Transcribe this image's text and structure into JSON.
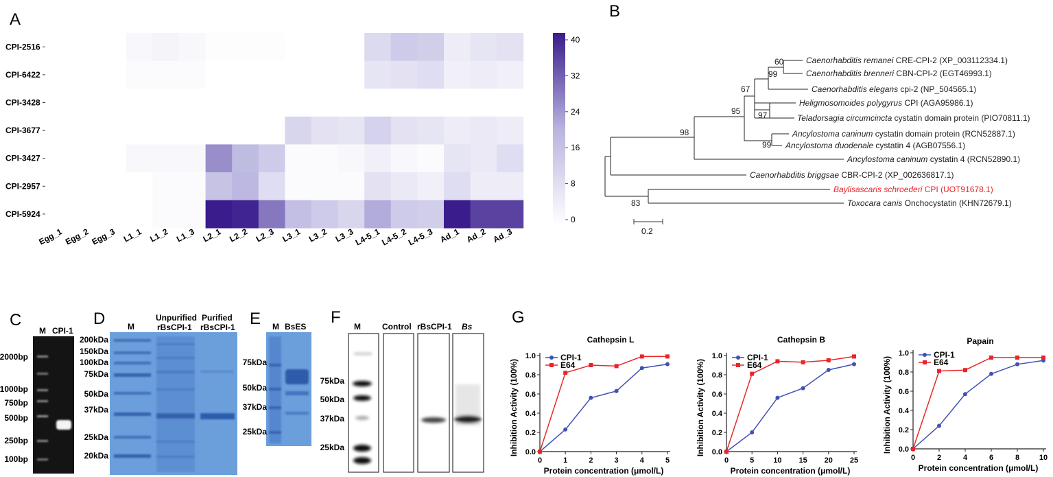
{
  "colors": {
    "heat_low": "#ffffff",
    "heat_high": "#3a1c8c",
    "series_cpi": "#3f51b5",
    "series_e64": "#e8262a",
    "highlight": "#e8262a",
    "gel_dark": "#0d0d0d",
    "gel_blue": "#5f95d6"
  },
  "panels": {
    "A": {
      "letter": "A"
    },
    "B": {
      "letter": "B"
    },
    "C": {
      "letter": "C"
    },
    "D": {
      "letter": "D"
    },
    "E": {
      "letter": "E"
    },
    "F": {
      "letter": "F"
    },
    "G": {
      "letter": "G"
    }
  },
  "heatmap": {
    "rows": [
      "CPI-2516",
      "CPI-6422",
      "CPI-3428",
      "CPI-3677",
      "CPI-3427",
      "CPI-2957",
      "CPI-5924"
    ],
    "cols": [
      "Egg_1",
      "Egg_2",
      "Egg_3",
      "L1_1",
      "L1_2",
      "L1_3",
      "L2_1",
      "L2_2",
      "L2_3",
      "L3_1",
      "L3_2",
      "L3_3",
      "L4-5_1",
      "L4-5_2",
      "L4-5_3",
      "Ad_1",
      "Ad_2",
      "Ad_3"
    ],
    "values": [
      [
        0,
        0,
        0,
        2,
        3,
        2,
        0.5,
        0.5,
        0.5,
        0,
        0,
        0,
        10,
        14,
        13,
        5,
        7,
        8
      ],
      [
        0,
        0,
        0,
        1,
        1,
        1,
        0,
        0,
        0,
        0,
        0,
        0,
        7,
        8,
        9,
        4,
        5,
        4
      ],
      [
        0,
        0,
        0,
        0,
        0,
        0,
        0,
        0,
        0,
        0,
        0,
        0,
        0,
        0,
        0,
        0,
        0,
        0
      ],
      [
        0,
        0,
        0,
        0,
        0,
        0,
        0,
        0,
        0,
        11,
        8,
        7,
        12,
        8,
        7,
        5,
        6,
        5
      ],
      [
        0,
        0,
        0,
        2,
        2,
        2,
        25,
        18,
        14,
        1,
        1,
        2,
        4,
        2,
        1,
        7,
        6,
        9
      ],
      [
        0,
        0,
        0,
        0,
        1,
        1,
        16,
        19,
        9,
        1,
        1,
        1,
        8,
        6,
        4,
        9,
        5,
        5
      ],
      [
        0,
        0,
        0,
        0,
        1,
        1,
        40,
        39,
        28,
        17,
        14,
        11,
        21,
        14,
        13,
        41,
        35,
        35
      ]
    ],
    "scale": {
      "min": 0,
      "max": 40,
      "ticks": [
        "40",
        "32",
        "24",
        "16",
        "8",
        "0"
      ]
    }
  },
  "tree": {
    "taxa": [
      {
        "species": "Caenorhabditis remanei",
        "rest": " CRE-CPI-2 (XP_003112334.1)"
      },
      {
        "species": "Caenorhabditis brenneri",
        "rest": " CBN-CPI-2 (EGT46993.1)"
      },
      {
        "species": "Caenorhabditis elegans",
        "rest": " cpi-2 (NP_504565.1)"
      },
      {
        "species": "Heligmosomoides polygyrus",
        "rest": " CPI (AGA95986.1)"
      },
      {
        "species": "Teladorsagia circumcincta",
        "rest": " cystatin domain protein (PIO70811.1)"
      },
      {
        "species": "Ancylostoma caninum",
        "rest": " cystatin domain protein (RCN52887.1)"
      },
      {
        "species": "Ancylostoma duodenale",
        "rest": " cystatin 4 (AGB07556.1)"
      },
      {
        "species": "Ancylostoma caninum",
        "rest": " cystatin 4 (RCN52890.1)"
      },
      {
        "species": "Caenorhabditis briggsae",
        "rest": " CBR-CPI-2 (XP_002636817.1)"
      },
      {
        "species": "Baylisascaris schroederi",
        "rest": " CPI (UOT91678.1)"
      },
      {
        "species": "Toxocara canis",
        "rest": " Onchocystatin (KHN72679.1)"
      }
    ],
    "bootstrap": [
      "60",
      "99",
      "67",
      "95",
      "97",
      "99",
      "98",
      "83"
    ],
    "scale_label": "0.2"
  },
  "gel_c": {
    "headers": [
      "M",
      "CPI-1"
    ],
    "ladder": [
      "2000bp",
      "1000bp",
      "750bp",
      "500bp",
      "250bp",
      "100bp"
    ]
  },
  "gel_d": {
    "headers": [
      "M",
      "Unpurified",
      "rBsCPI-1",
      "Purified",
      "rBsCPI-1"
    ],
    "ladder": [
      "200kDa",
      "150kDa",
      "100kDa",
      "75kDa",
      "50kDa",
      "37kDa",
      "25kDa",
      "20kDa"
    ]
  },
  "gel_e": {
    "headers": [
      "M",
      "BsES"
    ],
    "ladder": [
      "75kDa",
      "50kDa",
      "37kDa",
      "25kDa"
    ]
  },
  "blot_f": {
    "headers": [
      "M",
      "Control",
      "rBsCPI-1",
      "Bs"
    ],
    "ladder": [
      "75kDa",
      "50kDa",
      "37kDa",
      "25kDa"
    ]
  },
  "chart_data": [
    {
      "type": "line",
      "title": "Cathepsin L",
      "xlabel": "Protein concentration (μmol/L)",
      "ylabel": "Inhibition Activity (100%)",
      "x": [
        0,
        1,
        2,
        3,
        4,
        5
      ],
      "xlim": [
        0,
        5
      ],
      "xticks": [
        "0",
        "1",
        "2",
        "3",
        "4",
        "5"
      ],
      "ylim": [
        0,
        1
      ],
      "yticks": [
        "0.0",
        "0.2",
        "0.4",
        "0.6",
        "0.8",
        "1.0"
      ],
      "legend": "top-left",
      "series": [
        {
          "name": "CPI-1",
          "values": [
            0,
            0.23,
            0.56,
            0.63,
            0.87,
            0.91
          ]
        },
        {
          "name": "E64",
          "values": [
            0,
            0.82,
            0.9,
            0.89,
            0.99,
            0.99
          ]
        }
      ]
    },
    {
      "type": "line",
      "title": "Cathepsin B",
      "xlabel": "Protein concentration (μmol/L)",
      "ylabel": "Inhibition Activity (100%)",
      "x": [
        0,
        5,
        10,
        15,
        20,
        25
      ],
      "xlim": [
        0,
        25
      ],
      "xticks": [
        "0",
        "5",
        "10",
        "15",
        "20",
        "25"
      ],
      "ylim": [
        0,
        1
      ],
      "yticks": [
        "0.0",
        "0.2",
        "0.4",
        "0.6",
        "0.8",
        "1.0"
      ],
      "legend": "top-left",
      "series": [
        {
          "name": "CPI-1",
          "values": [
            0,
            0.2,
            0.56,
            0.66,
            0.85,
            0.91
          ]
        },
        {
          "name": "E64",
          "values": [
            0,
            0.81,
            0.94,
            0.93,
            0.95,
            0.99
          ]
        }
      ]
    },
    {
      "type": "line",
      "title": "Papain",
      "xlabel": "Protein concentration (μmol/L)",
      "ylabel": "Inhibition Activity (100%)",
      "x": [
        0,
        2,
        4,
        6,
        8,
        10
      ],
      "xlim": [
        0,
        10
      ],
      "xticks": [
        "0",
        "2",
        "4",
        "6",
        "8",
        "10"
      ],
      "ylim": [
        0,
        1
      ],
      "yticks": [
        "0.0",
        "0.2",
        "0.4",
        "0.6",
        "0.8",
        "1.0"
      ],
      "legend": "top-left",
      "series": [
        {
          "name": "CPI-1",
          "values": [
            0,
            0.24,
            0.57,
            0.78,
            0.88,
            0.92
          ]
        },
        {
          "name": "E64",
          "values": [
            0,
            0.81,
            0.82,
            0.95,
            0.95,
            0.95
          ]
        }
      ]
    }
  ]
}
